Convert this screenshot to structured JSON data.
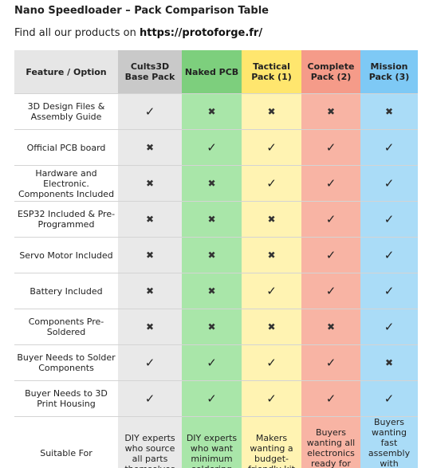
{
  "header": {
    "title": "Nano Speedloader – Pack Comparison Table",
    "subtitle_prefix": "Find all our products on",
    "link": "https://protoforge.fr/"
  },
  "table": {
    "columns": [
      "Feature / Option",
      "Cults3D Base Pack",
      "Naked PCB",
      "Tactical Pack (1)",
      "Complete Pack (2)",
      "Mission Pack (3)"
    ],
    "rows": [
      [
        "3D Design Files & Assembly Guide",
        "✓",
        "✖",
        "✖",
        "✖",
        "✖"
      ],
      [
        "Official PCB board",
        "✖",
        "✓",
        "✓",
        "✓",
        "✓"
      ],
      [
        "Hardware and Electronic. Components Included",
        "✖",
        "✖",
        "✓",
        "✓",
        "✓"
      ],
      [
        "ESP32 Included & Pre-Programmed",
        "✖",
        "✖",
        "✖",
        "✓",
        "✓"
      ],
      [
        "Servo Motor Included",
        "✖",
        "✖",
        "✖",
        "✓",
        "✓"
      ],
      [
        "Battery Included",
        "✖",
        "✖",
        "✓",
        "✓",
        "✓"
      ],
      [
        "Components Pre-Soldered",
        "✖",
        "✖",
        "✖",
        "✖",
        "✓"
      ],
      [
        "Buyer Needs to Solder Components",
        "✓",
        "✓",
        "✓",
        "✓",
        "✖"
      ],
      [
        "Buyer Needs to 3D Print Housing",
        "✓",
        "✓",
        "✓",
        "✓",
        "✓"
      ],
      [
        "Suitable For",
        "DIY experts who source all parts themselves",
        "DIY experts who want minimum soldering",
        "Makers wanting a budget-friendly kit",
        "Buyers wanting all electronics ready for soldering",
        "Buyers wanting fast assembly with minimal work"
      ]
    ]
  }
}
